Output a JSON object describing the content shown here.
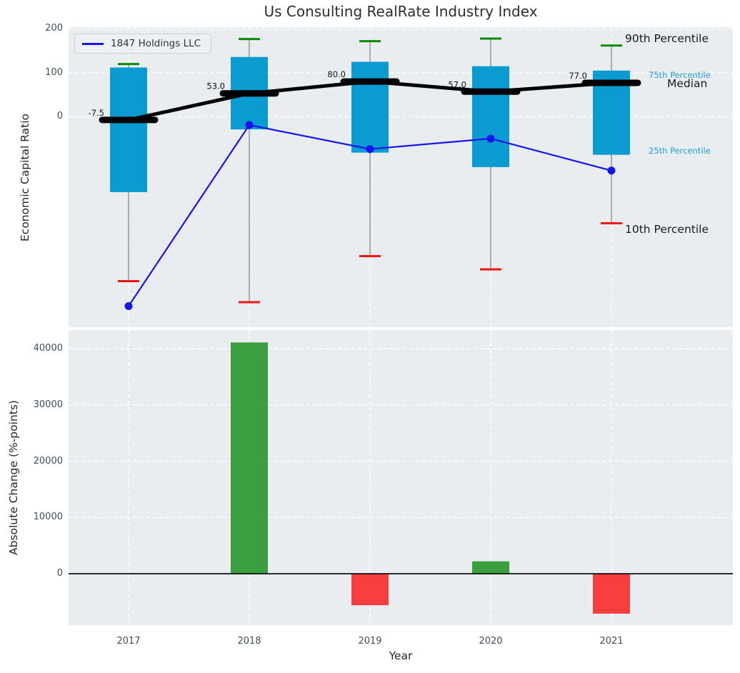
{
  "title": "Us Consulting RealRate Industry Index",
  "legend": {
    "label": "1847 Holdings LLC"
  },
  "annotations": {
    "p90": "90th Percentile",
    "p75": "75th Percentile",
    "median": "Median",
    "p25": "25th Percentile",
    "p10": "10th Percentile"
  },
  "colors": {
    "box": "#0a9bd0",
    "whisker": "#666666",
    "cap_top": "#0a8a0a",
    "cap_bottom": "#f51414",
    "median": "#000000",
    "company_line": "#1515ef",
    "bar_positive": "#3b9e3f",
    "bar_negative": "#f83e3e",
    "grid": "#ffffff",
    "plot_background": "#e9edf0",
    "tick_label": "#3d4e60",
    "annotation_cyan": "#1f9fd3"
  },
  "chart_data": [
    {
      "type": "boxplot+line",
      "title": "Us Consulting RealRate Industry Index",
      "ylabel": "Economic Capital Ratio",
      "categories": [
        "2017",
        "2018",
        "2019",
        "2020",
        "2021"
      ],
      "yticks": [
        0,
        100,
        200
      ],
      "ylim": [
        -480,
        204
      ],
      "grid": "on",
      "legend_position": "upper left",
      "series": {
        "p90": [
          120,
          177,
          172,
          178,
          162
        ],
        "p75": [
          112,
          136,
          125,
          115,
          105
        ],
        "median": [
          -7.5,
          53,
          80,
          57,
          77
        ],
        "p25": [
          -172,
          -29,
          -82,
          -115,
          -87
        ],
        "p10": [
          -375,
          -423,
          -318,
          -348,
          -243
        ],
        "company": [
          -432,
          -19,
          -74,
          -50,
          -123
        ]
      },
      "median_labels": [
        "-7.5",
        "53.0",
        "80.0",
        "57.0",
        "77.0"
      ]
    },
    {
      "type": "bar",
      "ylabel": "Absolute Change (%-points)",
      "xlabel": "Year",
      "categories": [
        "2017",
        "2018",
        "2019",
        "2020",
        "2021"
      ],
      "values": [
        null,
        41100,
        -5600,
        2200,
        -7100
      ],
      "yticks": [
        0,
        10000,
        20000,
        30000,
        40000
      ],
      "ylim": [
        -9140,
        43300
      ],
      "grid": "on"
    }
  ]
}
